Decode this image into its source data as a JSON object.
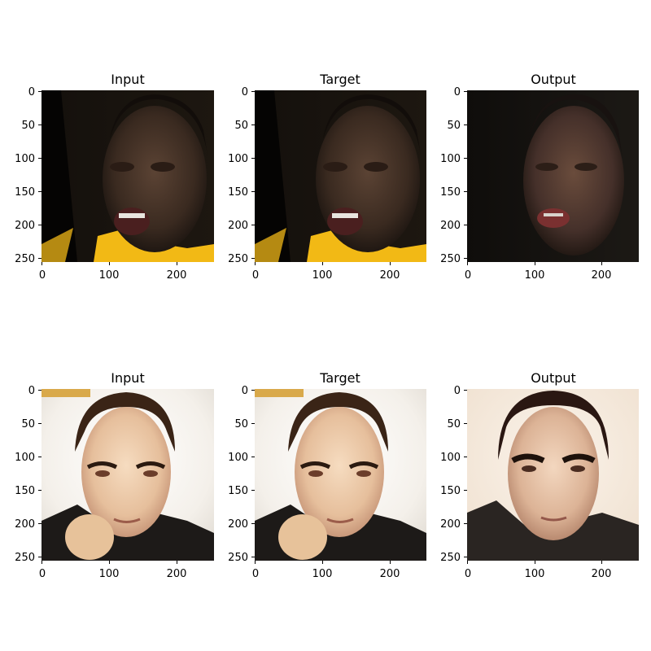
{
  "figure": {
    "rows": [
      {
        "panels": [
          {
            "title": "Input"
          },
          {
            "title": "Target"
          },
          {
            "title": "Output"
          }
        ]
      },
      {
        "panels": [
          {
            "title": "Input"
          },
          {
            "title": "Target"
          },
          {
            "title": "Output"
          }
        ]
      }
    ],
    "x_ticks": [
      "0",
      "100",
      "200"
    ],
    "y_ticks": [
      "0",
      "50",
      "100",
      "150",
      "200",
      "250"
    ]
  }
}
